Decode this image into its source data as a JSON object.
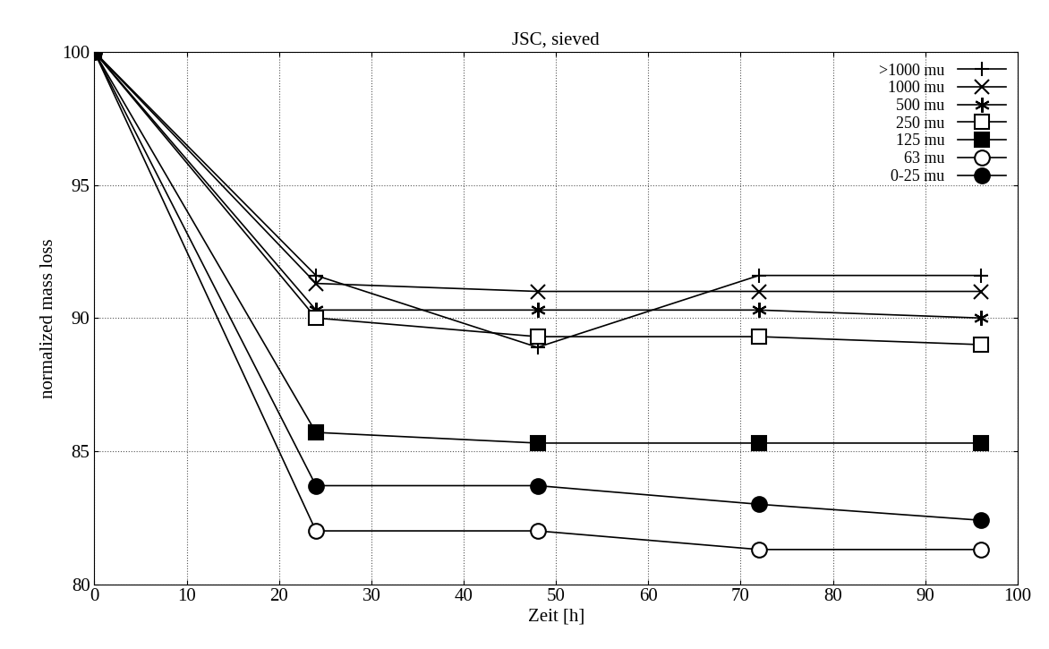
{
  "chart_data": {
    "type": "line",
    "title": "JSC, sieved",
    "x_label": "Zeit [h]",
    "y_label": "normalized mass loss",
    "x": [
      0,
      24,
      48,
      72,
      96
    ],
    "series": [
      {
        "name": ">1000 mu",
        "color": "#000000",
        "marker": "plus",
        "values": [
          100,
          91.6,
          88.9,
          91.6,
          91.6
        ]
      },
      {
        "name": "1000 mu",
        "color": "#000000",
        "marker": "x",
        "values": [
          100,
          91.3,
          91.0,
          91.0,
          91.0
        ]
      },
      {
        "name": "500 mu",
        "color": "#000000",
        "marker": "star",
        "values": [
          100,
          90.3,
          90.3,
          90.3,
          90.0
        ]
      },
      {
        "name": "250 mu",
        "color": "#000000",
        "marker": "open_square",
        "values": [
          100,
          90.0,
          89.3,
          89.3,
          89.0
        ]
      },
      {
        "name": "125 mu",
        "color": "#000000",
        "marker": "square",
        "values": [
          100,
          85.7,
          85.3,
          85.3,
          85.3
        ]
      },
      {
        "name": "63 mu",
        "color": "#000000",
        "marker": "open_circle",
        "values": [
          100,
          82.0,
          82.0,
          81.3,
          81.3
        ]
      },
      {
        "name": "0-25 mu",
        "color": "#000000",
        "marker": "circle",
        "values": [
          100,
          83.7,
          83.7,
          83.0,
          82.4
        ]
      }
    ],
    "xlim": [
      0,
      100
    ],
    "xticks": [
      0,
      10,
      20,
      30,
      40,
      50,
      60,
      70,
      80,
      90,
      100
    ],
    "ylim": [
      80,
      100
    ],
    "yticks": [
      80,
      85,
      90,
      95,
      100
    ],
    "grid": true,
    "legend": "upper right"
  }
}
